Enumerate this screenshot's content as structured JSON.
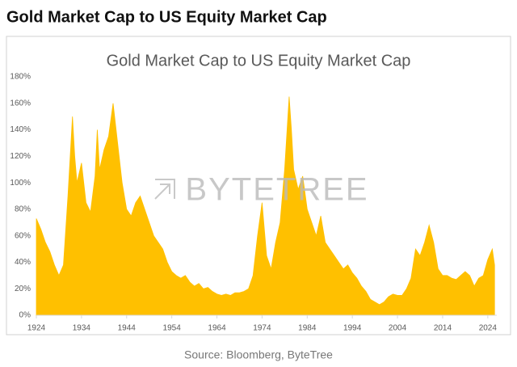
{
  "header": {
    "title": "Gold Market Cap to US Equity Market Cap"
  },
  "chart_data": {
    "type": "area",
    "title": "Gold Market Cap to US Equity Market Cap",
    "watermark": "BYTETREE",
    "color": "#ffc000",
    "x": [
      1924,
      1925,
      1926,
      1927,
      1928,
      1929,
      1930,
      1931,
      1932,
      1932.5,
      1933,
      1934,
      1935,
      1936,
      1937,
      1937.5,
      1938,
      1939,
      1940,
      1941,
      1942,
      1943,
      1944,
      1945,
      1946,
      1947,
      1948,
      1949,
      1950,
      1951,
      1952,
      1953,
      1954,
      1955,
      1956,
      1957,
      1958,
      1959,
      1960,
      1961,
      1962,
      1963,
      1964,
      1965,
      1966,
      1967,
      1968,
      1969,
      1970,
      1971,
      1972,
      1973,
      1974,
      1975,
      1976,
      1977,
      1978,
      1979,
      1980,
      1980.5,
      1981,
      1982,
      1983,
      1984,
      1985,
      1986,
      1987,
      1988,
      1989,
      1990,
      1991,
      1992,
      1993,
      1994,
      1995,
      1996,
      1997,
      1998,
      1999,
      2000,
      2001,
      2002,
      2003,
      2004,
      2005,
      2006,
      2007,
      2008,
      2009,
      2010,
      2011,
      2012,
      2013,
      2014,
      2015,
      2016,
      2017,
      2018,
      2019,
      2020,
      2021,
      2022,
      2023,
      2024,
      2025,
      2025.5
    ],
    "values": [
      73,
      65,
      55,
      48,
      38,
      30,
      38,
      90,
      150,
      120,
      100,
      115,
      85,
      78,
      105,
      140,
      110,
      125,
      135,
      160,
      130,
      100,
      80,
      75,
      85,
      90,
      80,
      70,
      60,
      55,
      50,
      40,
      33,
      30,
      28,
      30,
      25,
      22,
      24,
      20,
      21,
      18,
      16,
      15,
      16,
      15,
      17,
      17,
      18,
      20,
      30,
      60,
      85,
      45,
      35,
      55,
      70,
      110,
      165,
      140,
      110,
      95,
      105,
      80,
      70,
      60,
      75,
      55,
      50,
      45,
      40,
      35,
      38,
      32,
      28,
      22,
      18,
      12,
      10,
      8,
      10,
      14,
      16,
      15,
      15,
      20,
      28,
      50,
      45,
      55,
      68,
      55,
      35,
      30,
      30,
      28,
      27,
      30,
      33,
      30,
      22,
      28,
      30,
      42,
      50,
      38
    ],
    "xlim": [
      1924,
      2026
    ],
    "xticks": [
      1924,
      1934,
      1944,
      1954,
      1964,
      1974,
      1984,
      1994,
      2004,
      2014,
      2024
    ],
    "ylim": [
      0,
      180
    ],
    "yticks": [
      {
        "value": 0,
        "label": "0%"
      },
      {
        "value": 20,
        "label": "20%"
      },
      {
        "value": 40,
        "label": "40%"
      },
      {
        "value": 60,
        "label": "60%"
      },
      {
        "value": 80,
        "label": "80%"
      },
      {
        "value": 100,
        "label": "100%"
      },
      {
        "value": 120,
        "label": "120%"
      },
      {
        "value": 140,
        "label": "140%"
      },
      {
        "value": 160,
        "label": "160%"
      },
      {
        "value": 180,
        "label": "180%"
      }
    ],
    "source": "Source: Bloomberg, ByteTree"
  }
}
